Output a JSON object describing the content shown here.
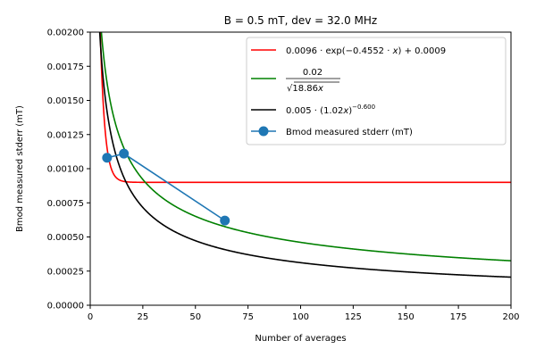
{
  "chart_data": {
    "type": "line",
    "title": "B = 0.5 mT, dev = 32.0 MHz",
    "xlabel": "Number of averages",
    "ylabel": "Bmod measured stderr (mT)",
    "xlim": [
      0,
      200
    ],
    "ylim": [
      0,
      0.002
    ],
    "x_ticks": [
      "0",
      "25",
      "50",
      "75",
      "100",
      "125",
      "150",
      "175",
      "200"
    ],
    "y_ticks": [
      "0.00000",
      "0.00025",
      "0.00050",
      "0.00075",
      "0.00100",
      "0.00125",
      "0.00150",
      "0.00175",
      "0.00200"
    ],
    "grid": false,
    "legend_position": "top-right",
    "series": [
      {
        "kind": "function",
        "model": "exponential",
        "params": {
          "a": 0.0096,
          "b": 0.4552,
          "c": 0.0009
        },
        "color": "#ff0000",
        "legend_parts": [
          "0.0096 · exp(−0.4552 · ",
          "x",
          ") + 0.0009"
        ]
      },
      {
        "kind": "function",
        "model": "sqrt",
        "params": {
          "a": 0.02,
          "b": 18.86
        },
        "color": "#008000",
        "legend_parts": [
          "0.02",
          "√",
          "18.86",
          "x"
        ]
      },
      {
        "kind": "function",
        "model": "power",
        "params": {
          "a": 0.005,
          "b": 1.02,
          "p": -0.6
        },
        "color": "#000000",
        "legend_parts": [
          "0.005 · (1.02",
          "x",
          ")",
          "−0.600"
        ]
      },
      {
        "kind": "data",
        "name": "Bmod measured stderr (mT)",
        "color": "#1f77b4",
        "x": [
          8,
          16,
          64
        ],
        "y": [
          0.00108,
          0.00111,
          0.00062
        ]
      }
    ]
  }
}
